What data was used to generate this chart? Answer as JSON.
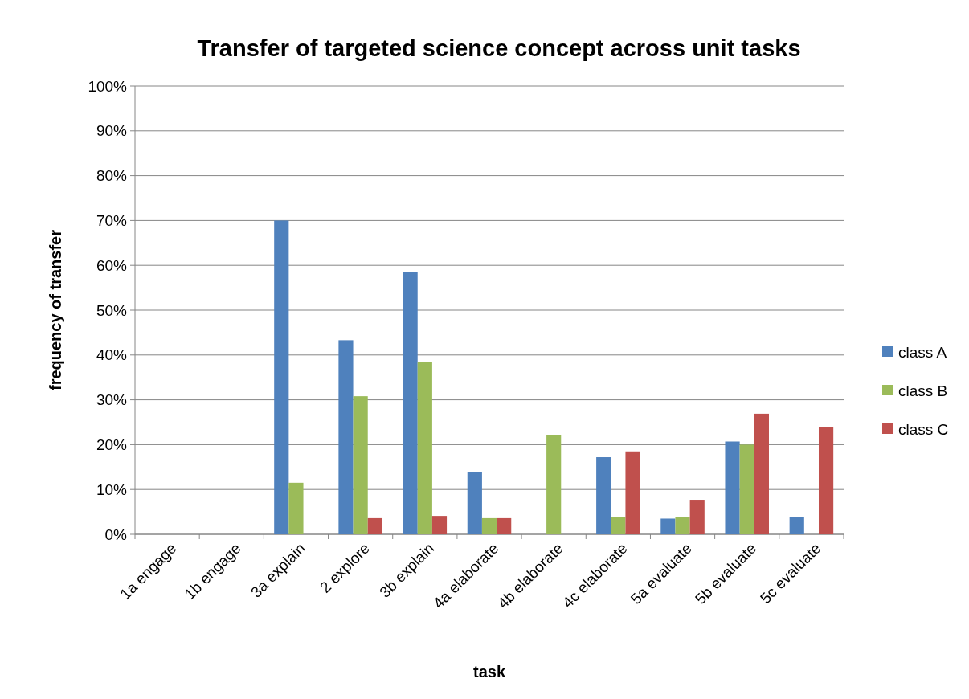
{
  "chart_data": {
    "type": "bar",
    "title": "Transfer of targeted science concept across unit tasks",
    "xlabel": "task",
    "ylabel": "frequency of transfer",
    "categories": [
      "1a engage",
      "1b engage",
      "3a explain",
      "2 explore",
      "3b explain",
      "4a elaborate",
      "4b elaborate",
      "4c elaborate",
      "5a evaluate",
      "5b evaluate",
      "5c evaluate"
    ],
    "series": [
      {
        "name": "class A",
        "color": "#4f81bd",
        "values": [
          0,
          0,
          70,
          43.3,
          58.6,
          13.8,
          0,
          17.2,
          3.5,
          20.7,
          3.8
        ]
      },
      {
        "name": "class B",
        "color": "#9bbb59",
        "values": [
          0,
          0,
          11.5,
          30.8,
          38.5,
          3.6,
          22.2,
          3.8,
          3.8,
          20,
          0
        ]
      },
      {
        "name": "class C",
        "color": "#c0504d",
        "values": [
          0,
          0,
          0,
          3.6,
          4.1,
          3.6,
          0,
          18.5,
          7.7,
          26.9,
          24
        ]
      }
    ],
    "ylim": [
      0,
      100
    ],
    "yticks": [
      {
        "value": 0,
        "label": "0%"
      },
      {
        "value": 10,
        "label": "10%"
      },
      {
        "value": 20,
        "label": "20%"
      },
      {
        "value": 30,
        "label": "30%"
      },
      {
        "value": 40,
        "label": "40%"
      },
      {
        "value": 50,
        "label": "50%"
      },
      {
        "value": 60,
        "label": "60%"
      },
      {
        "value": 70,
        "label": "70%"
      },
      {
        "value": 80,
        "label": "80%"
      },
      {
        "value": 90,
        "label": "90%"
      },
      {
        "value": 100,
        "label": "100%"
      }
    ],
    "grid": "y",
    "legend": "right"
  }
}
